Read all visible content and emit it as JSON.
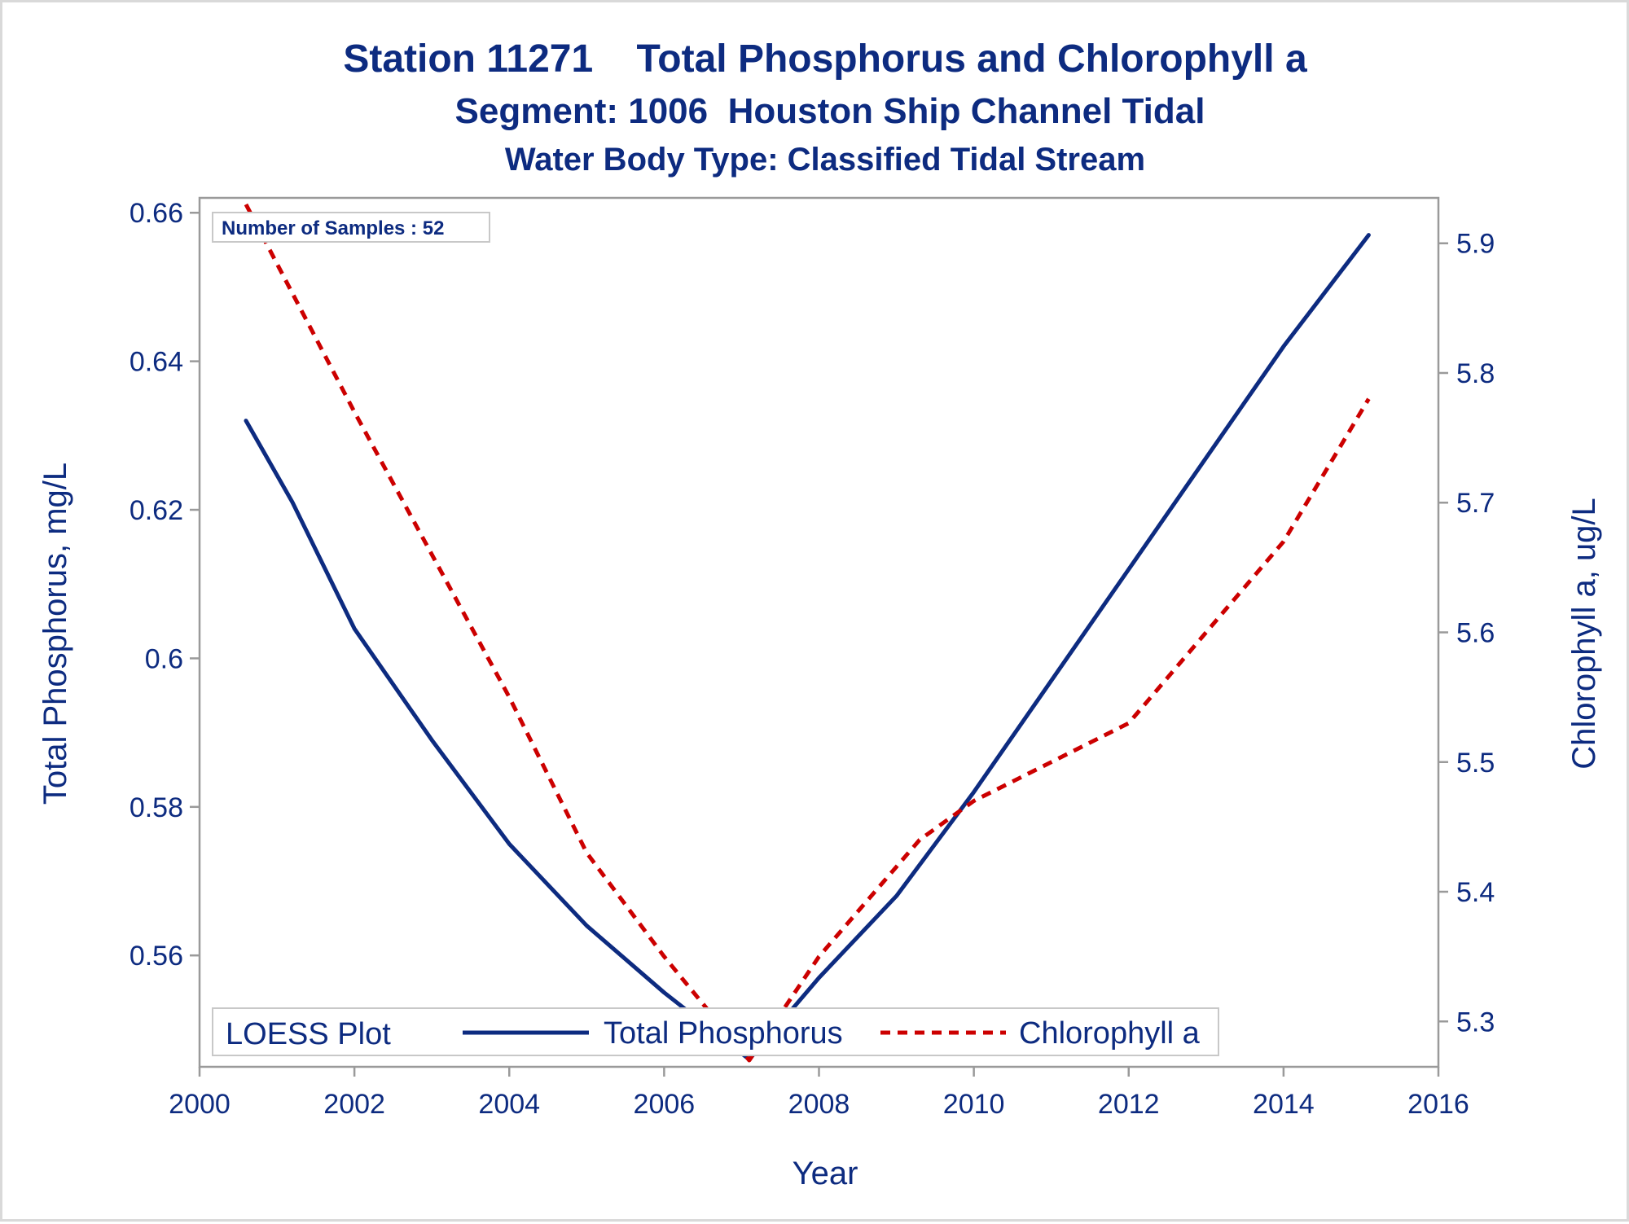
{
  "chart_data": {
    "type": "line",
    "title": "Station 11271    Total Phosphorus and Chlorophyll a",
    "subtitle": "Segment: 1006  Houston Ship Channel Tidal",
    "subtitle2": "Water Body Type: Classified Tidal Stream",
    "xlabel": "Year",
    "ylabel_left": "Total Phosphorus, mg/L",
    "ylabel_right": "Chlorophyll a, ug/L",
    "xlim": [
      2000,
      2016
    ],
    "ylim_left": [
      0.545,
      0.662
    ],
    "ylim_right": [
      5.265,
      5.935
    ],
    "x_ticks": [
      2000,
      2002,
      2004,
      2006,
      2008,
      2010,
      2012,
      2014,
      2016
    ],
    "x_tick_labels": [
      "2000",
      "2002",
      "2004",
      "2006",
      "2008",
      "2010",
      "2012",
      "2014",
      "2016"
    ],
    "y_left_ticks": [
      0.56,
      0.58,
      0.6,
      0.62,
      0.64,
      0.66
    ],
    "y_left_tick_labels": [
      "0.56",
      "0.58",
      "0.6",
      "0.62",
      "0.64",
      "0.66"
    ],
    "y_right_ticks": [
      5.3,
      5.4,
      5.5,
      5.6,
      5.7,
      5.8,
      5.9
    ],
    "y_right_tick_labels": [
      "5.3",
      "5.4",
      "5.5",
      "5.6",
      "5.7",
      "5.8",
      "5.9"
    ],
    "grid": false,
    "legend_placement": "bottom-left inside",
    "series": [
      {
        "name": "Total Phosphorus",
        "axis": "left",
        "color": "#0d2b80",
        "style": "solid",
        "x": [
          2000.6,
          2001.2,
          2002.0,
          2003.0,
          2004.0,
          2005.0,
          2006.0,
          2007.1,
          2008.0,
          2009.0,
          2010.0,
          2011.0,
          2012.0,
          2013.0,
          2014.0,
          2015.1
        ],
        "y": [
          0.632,
          0.621,
          0.604,
          0.589,
          0.575,
          0.564,
          0.555,
          0.546,
          0.557,
          0.568,
          0.582,
          0.597,
          0.612,
          0.627,
          0.642,
          0.657
        ]
      },
      {
        "name": "Chlorophyll a",
        "axis": "right",
        "color": "#cc0000",
        "style": "dashed",
        "x": [
          2000.6,
          2002.0,
          2003.0,
          2004.0,
          2005.0,
          2006.0,
          2007.1,
          2008.0,
          2009.3,
          2010.0,
          2011.0,
          2012.0,
          2013.0,
          2014.0,
          2015.1
        ],
        "y": [
          5.93,
          5.77,
          5.66,
          5.55,
          5.43,
          5.35,
          5.27,
          5.35,
          5.44,
          5.47,
          5.5,
          5.53,
          5.6,
          5.67,
          5.78
        ]
      }
    ],
    "annotation": "Number of Samples : 52",
    "legend": {
      "title": "LOESS Plot",
      "entries": [
        "Total Phosphorus",
        "Chlorophyll a"
      ]
    }
  }
}
